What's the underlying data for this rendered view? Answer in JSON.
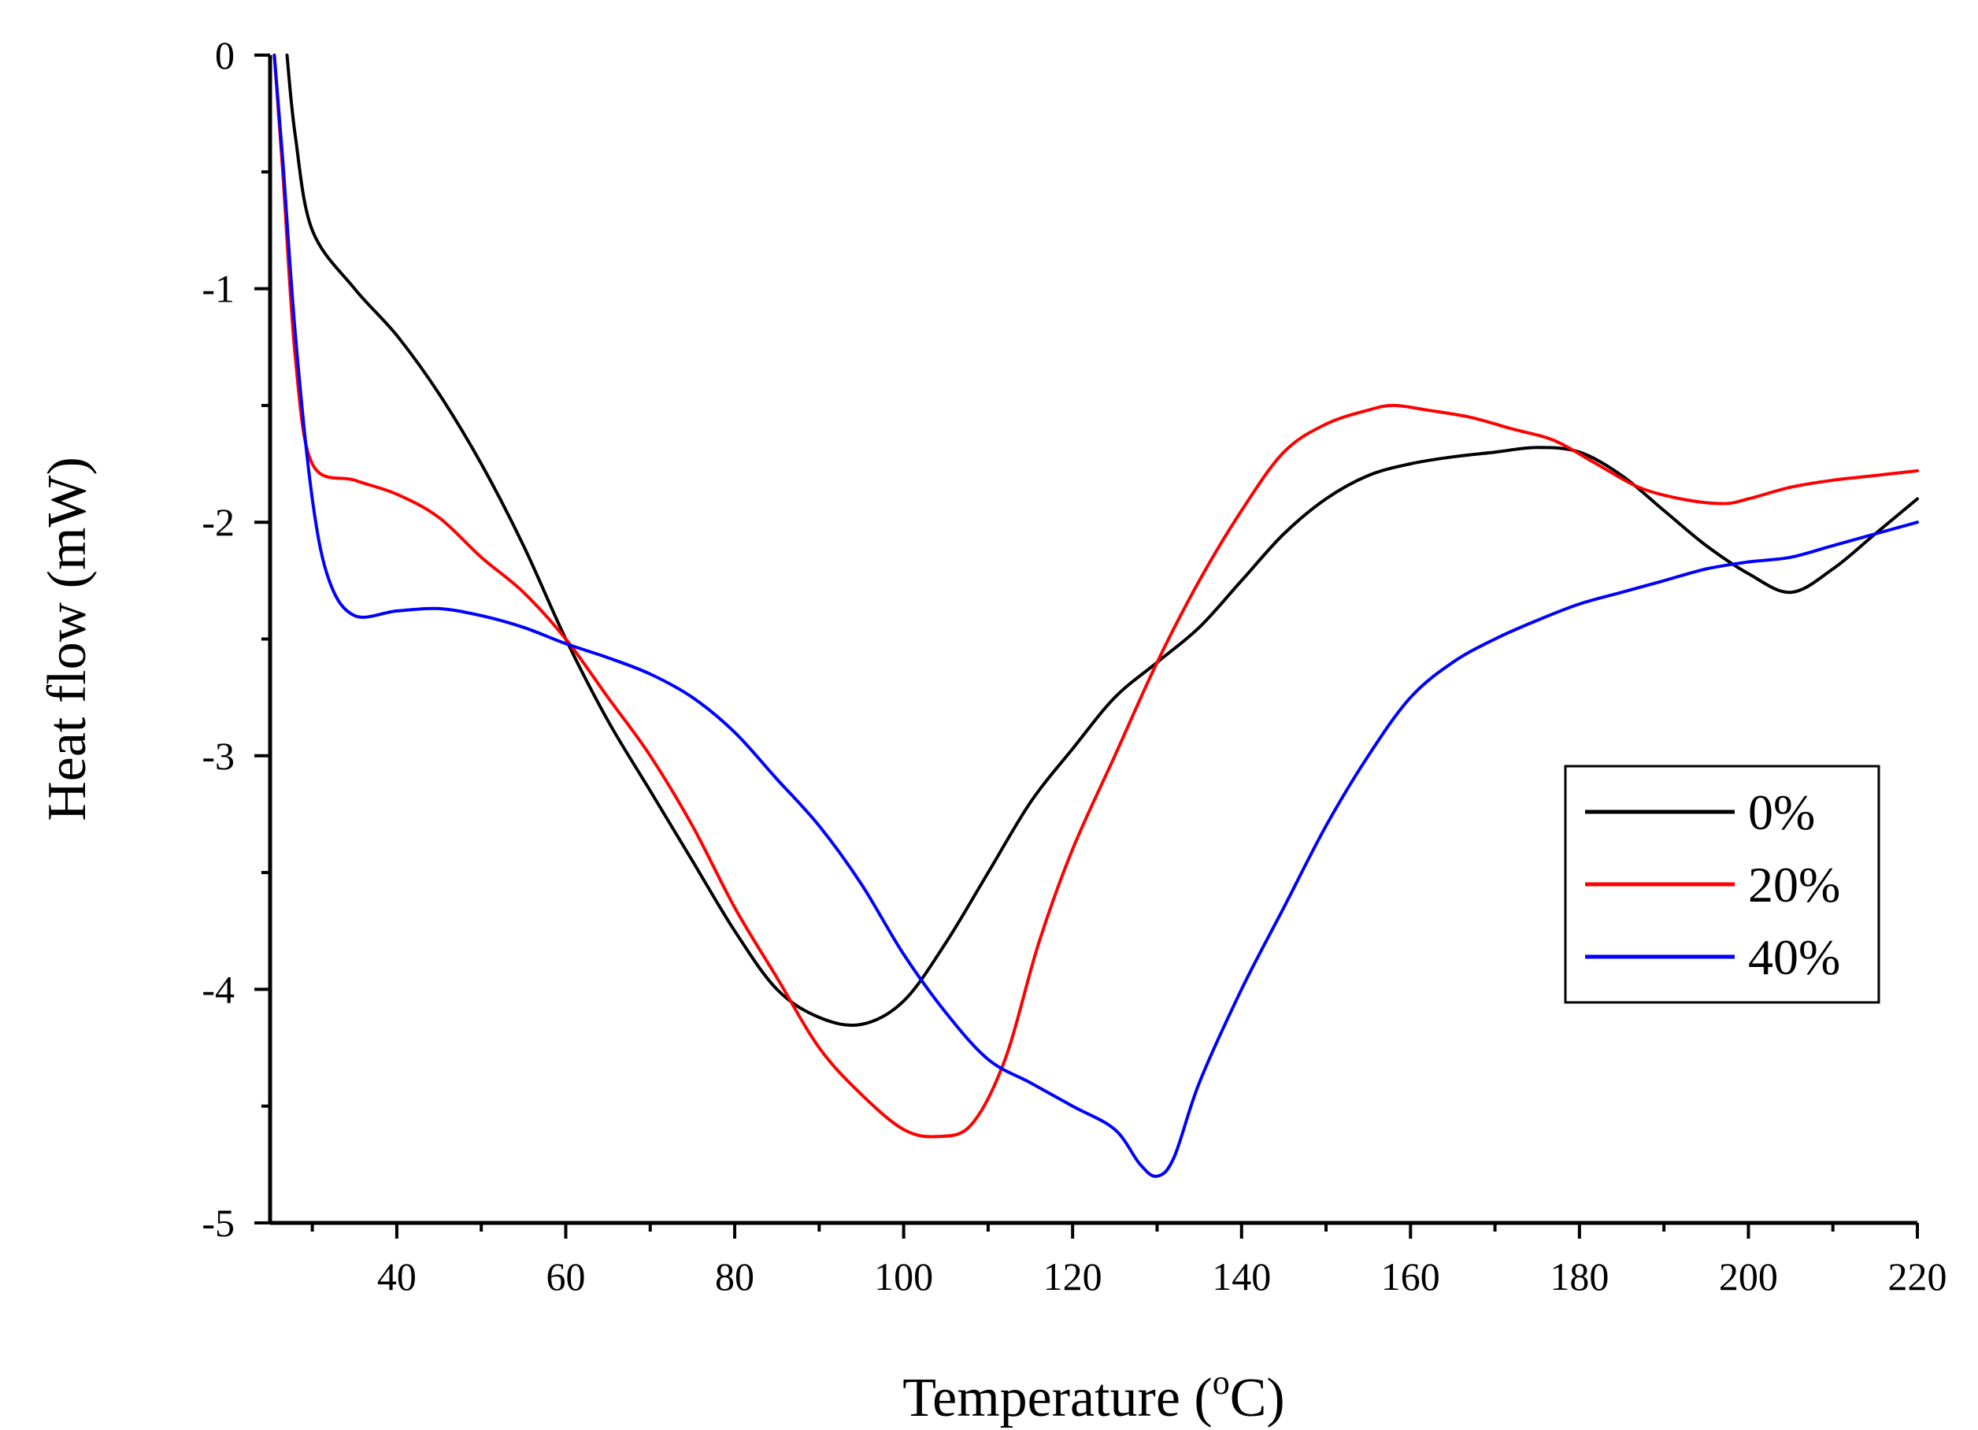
{
  "chart_data": {
    "type": "line",
    "title": "",
    "xlabel": "Temperature (",
    "xlabel_sup": "o",
    "xlabel_tail": "C)",
    "ylabel": "Heat flow (mW)",
    "xlim": [
      25,
      220
    ],
    "ylim": [
      -5,
      0
    ],
    "x_ticks": [
      40,
      60,
      80,
      100,
      120,
      140,
      160,
      180,
      200,
      220
    ],
    "x_tick_labels": [
      "40",
      "60",
      "80",
      "100",
      "120",
      "140",
      "160",
      "180",
      "200",
      "220"
    ],
    "y_ticks": [
      0,
      -1,
      -2,
      -3,
      -4,
      -5
    ],
    "y_tick_labels": [
      "0",
      "-1",
      "-2",
      "-3",
      "-4",
      "-5"
    ],
    "x_minor_ticks": [
      30,
      50,
      70,
      90,
      110,
      130,
      150,
      170,
      190,
      210
    ],
    "y_minor_ticks": [
      -0.5,
      -1.5,
      -2.5,
      -3.5,
      -4.5
    ],
    "grid": false,
    "legend_position": "right",
    "series": [
      {
        "name": "0%",
        "color": "#000000",
        "x": [
          27,
          28,
          30,
          35,
          40,
          45,
          50,
          55,
          60,
          65,
          70,
          75,
          80,
          85,
          90,
          95,
          100,
          105,
          110,
          115,
          120,
          125,
          130,
          135,
          140,
          145,
          150,
          155,
          160,
          165,
          170,
          175,
          180,
          185,
          190,
          195,
          200,
          205,
          210,
          215,
          220
        ],
        "y": [
          0,
          -0.35,
          -0.75,
          -1.0,
          -1.2,
          -1.45,
          -1.75,
          -2.1,
          -2.5,
          -2.85,
          -3.15,
          -3.45,
          -3.75,
          -4.0,
          -4.12,
          -4.15,
          -4.05,
          -3.8,
          -3.5,
          -3.2,
          -2.97,
          -2.75,
          -2.6,
          -2.45,
          -2.25,
          -2.05,
          -1.9,
          -1.8,
          -1.75,
          -1.72,
          -1.7,
          -1.68,
          -1.7,
          -1.8,
          -1.95,
          -2.1,
          -2.22,
          -2.3,
          -2.2,
          -2.05,
          -1.9
        ]
      },
      {
        "name": "20%",
        "color": "#ff0000",
        "x": [
          25.5,
          26.5,
          28,
          30,
          35,
          40,
          45,
          50,
          55,
          60,
          65,
          70,
          75,
          80,
          85,
          90,
          95,
          100,
          104,
          108,
          112,
          116,
          120,
          125,
          130,
          135,
          140,
          145,
          150,
          155,
          158,
          162,
          167,
          172,
          177,
          182,
          187,
          192,
          197,
          200,
          205,
          210,
          215,
          220
        ],
        "y": [
          0,
          -0.5,
          -1.3,
          -1.75,
          -1.82,
          -1.88,
          -1.98,
          -2.15,
          -2.3,
          -2.5,
          -2.75,
          -3.0,
          -3.3,
          -3.65,
          -3.95,
          -4.25,
          -4.45,
          -4.6,
          -4.63,
          -4.58,
          -4.3,
          -3.8,
          -3.4,
          -3.0,
          -2.6,
          -2.25,
          -1.95,
          -1.7,
          -1.58,
          -1.52,
          -1.5,
          -1.52,
          -1.55,
          -1.6,
          -1.65,
          -1.75,
          -1.85,
          -1.9,
          -1.92,
          -1.9,
          -1.85,
          -1.82,
          -1.8,
          -1.78
        ]
      },
      {
        "name": "40%",
        "color": "#0000ff",
        "x": [
          25.5,
          26.5,
          28,
          30,
          32,
          35,
          40,
          45,
          50,
          55,
          60,
          65,
          70,
          75,
          80,
          85,
          90,
          95,
          100,
          105,
          110,
          115,
          120,
          125,
          128,
          130,
          132,
          135,
          140,
          145,
          150,
          155,
          160,
          165,
          170,
          175,
          180,
          185,
          190,
          195,
          200,
          205,
          210,
          215,
          220
        ],
        "y": [
          0,
          -0.45,
          -1.2,
          -1.9,
          -2.25,
          -2.4,
          -2.38,
          -2.37,
          -2.4,
          -2.45,
          -2.52,
          -2.58,
          -2.65,
          -2.75,
          -2.9,
          -3.1,
          -3.3,
          -3.55,
          -3.85,
          -4.1,
          -4.3,
          -4.4,
          -4.5,
          -4.6,
          -4.75,
          -4.8,
          -4.72,
          -4.4,
          -4.0,
          -3.65,
          -3.3,
          -3.0,
          -2.75,
          -2.6,
          -2.5,
          -2.42,
          -2.35,
          -2.3,
          -2.25,
          -2.2,
          -2.17,
          -2.15,
          -2.1,
          -2.05,
          -2.0
        ]
      }
    ]
  }
}
